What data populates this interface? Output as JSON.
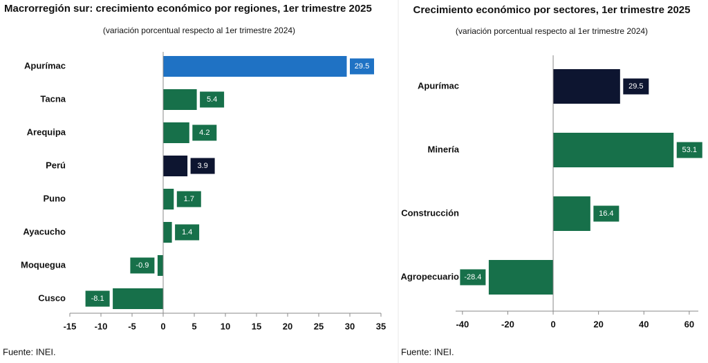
{
  "chart_data": [
    {
      "type": "bar",
      "orientation": "horizontal",
      "title": "Macrorregión sur: crecimiento económico por regiones, 1er trimestre 2025",
      "subtitle": "(variación porcentual respecto al 1er trimestre 2024)",
      "categories": [
        "Apurímac",
        "Tacna",
        "Arequipa",
        "Perú",
        "Puno",
        "Ayacucho",
        "Moquegua",
        "Cusco"
      ],
      "values": [
        29.5,
        5.4,
        4.2,
        3.9,
        1.7,
        1.4,
        -0.9,
        -8.1
      ],
      "colors": [
        "#1f72c4",
        "#17704a",
        "#17704a",
        "#0d1530",
        "#17704a",
        "#17704a",
        "#17704a",
        "#17704a"
      ],
      "xlim": [
        -15,
        35
      ],
      "xticks": [
        -15,
        -10,
        -5,
        0,
        5,
        10,
        15,
        20,
        25,
        30,
        35
      ],
      "source": "Fuente: INEI."
    },
    {
      "type": "bar",
      "orientation": "horizontal",
      "title": "Crecimiento económico por sectores, 1er trimestre 2025",
      "subtitle": "(variación porcentual respecto al 1er trimestre 2024)",
      "categories": [
        "Apurímac",
        "Minería",
        "Construcción",
        "Agropecuario"
      ],
      "values": [
        29.5,
        53.1,
        16.4,
        -28.4
      ],
      "colors": [
        "#0d1530",
        "#17704a",
        "#17704a",
        "#17704a"
      ],
      "xlim": [
        -43,
        64
      ],
      "xticks": [
        -40,
        -20,
        0,
        20,
        40,
        60
      ],
      "source": "Fuente: INEI."
    }
  ]
}
